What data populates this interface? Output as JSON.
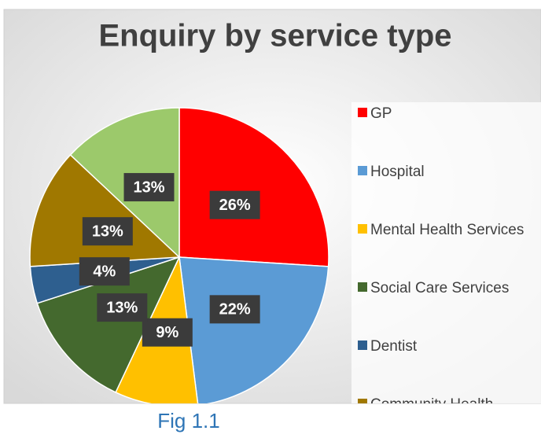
{
  "chart_data": {
    "type": "pie",
    "title": "Enquiry by service type",
    "categories": [
      "GP",
      "Hospital",
      "Mental Health Services",
      "Social Care Services",
      "Dentist",
      "Community Health",
      null
    ],
    "values": [
      26,
      22,
      9,
      13,
      4,
      13,
      13
    ],
    "value_labels": [
      "26%",
      "22%",
      "9%",
      "13%",
      "4%",
      "13%",
      "13%"
    ],
    "colors": [
      "#ff0000",
      "#5b9bd5",
      "#ffc000",
      "#44692e",
      "#2e5f8f",
      "#a07800",
      "#9cc96b"
    ],
    "legend": "right"
  },
  "caption": "Fig 1.1"
}
